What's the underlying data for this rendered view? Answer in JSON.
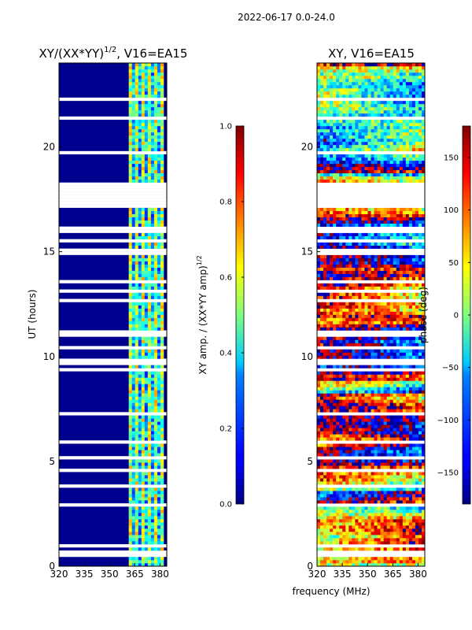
{
  "figure": {
    "suptitle": "2022-06-17 0.0-24.0",
    "xlabel_shared": "frequency (MHz)"
  },
  "chart_data": [
    {
      "type": "heatmap",
      "title_base": "XY/(XX*YY)",
      "title_exp": "1/2",
      "title_suffix": ", V16=EA15",
      "ylabel": "UT (hours)",
      "xlim": [
        320,
        384
      ],
      "ylim": [
        0,
        24
      ],
      "xticks": [
        "320",
        "335",
        "350",
        "365",
        "380"
      ],
      "yticks": [
        "0",
        "5",
        "10",
        "15",
        "20"
      ],
      "colorbar": {
        "label_base": "XY amp. / (XX*YY amp)",
        "label_exp": "1/2",
        "range": [
          0.0,
          1.0
        ],
        "ticks": [
          "0.0",
          "0.2",
          "0.4",
          "0.6",
          "0.8",
          "1.0"
        ],
        "colormap": "jet"
      }
    },
    {
      "type": "heatmap",
      "title": "XY, V16=EA15",
      "xlim": [
        320,
        384
      ],
      "ylim": [
        0,
        24
      ],
      "xticks": [
        "320",
        "335",
        "350",
        "365",
        "380"
      ],
      "yticks": [
        "0",
        "5",
        "10",
        "15",
        "20"
      ],
      "colorbar": {
        "label": "phase (deg)",
        "range": [
          -180,
          180
        ],
        "ticks": [
          "−150",
          "−100",
          "−50",
          "0",
          "50",
          "100",
          "150"
        ],
        "colormap": "jet"
      }
    }
  ]
}
